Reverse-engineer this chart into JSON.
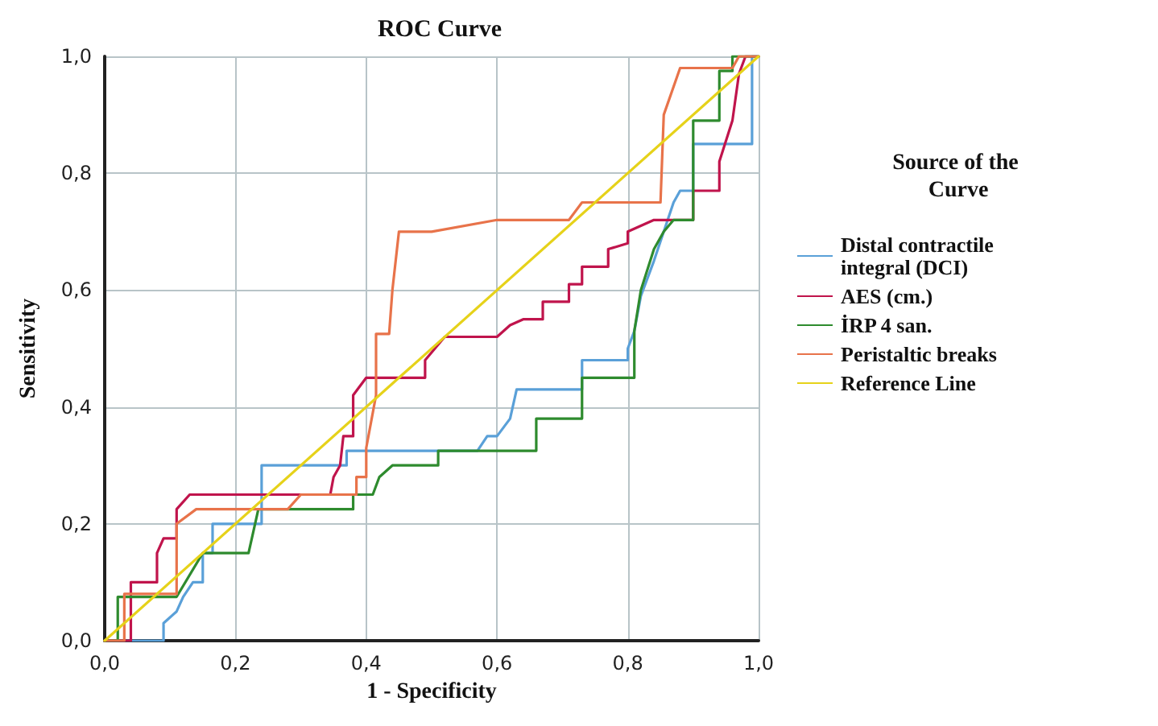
{
  "chart_data": {
    "type": "line",
    "title": "ROC Curve",
    "xlabel": "1 - Specificity",
    "ylabel": "Sensitivity",
    "legend_title": "Source of the Curve",
    "xlim": [
      0,
      1
    ],
    "ylim": [
      0,
      1
    ],
    "xticks": [
      {
        "value": 0,
        "label": "0,0"
      },
      {
        "value": 0.2,
        "label": "0,2"
      },
      {
        "value": 0.4,
        "label": "0,4"
      },
      {
        "value": 0.6,
        "label": "0,6"
      },
      {
        "value": 0.8,
        "label": "0,8"
      },
      {
        "value": 1,
        "label": "1,0"
      }
    ],
    "yticks": [
      {
        "value": 0,
        "label": "0,0"
      },
      {
        "value": 0.2,
        "label": "0,2"
      },
      {
        "value": 0.4,
        "label": "0,4"
      },
      {
        "value": 0.6,
        "label": "0,6"
      },
      {
        "value": 0.8,
        "label": "0,8"
      },
      {
        "value": 1,
        "label": "1,0"
      }
    ],
    "grid": true,
    "legend": "right",
    "marker": "none",
    "line_style": "solid",
    "series": [
      {
        "name": "Distal contractile integral (DCI)",
        "color": "#5aa0d8",
        "x": [
          0,
          0.09,
          0.09,
          0.11,
          0.12,
          0.135,
          0.15,
          0.15,
          0.165,
          0.165,
          0.24,
          0.24,
          0.37,
          0.37,
          0.57,
          0.585,
          0.6,
          0.62,
          0.63,
          0.73,
          0.73,
          0.8,
          0.8,
          0.81,
          0.82,
          0.84,
          0.855,
          0.87,
          0.88,
          0.9,
          0.9,
          0.99,
          0.99,
          1
        ],
        "values": [
          0,
          0,
          0.03,
          0.05,
          0.075,
          0.1,
          0.1,
          0.15,
          0.15,
          0.2,
          0.2,
          0.3,
          0.3,
          0.325,
          0.325,
          0.35,
          0.35,
          0.38,
          0.43,
          0.43,
          0.48,
          0.48,
          0.5,
          0.53,
          0.59,
          0.65,
          0.7,
          0.75,
          0.77,
          0.77,
          0.85,
          0.85,
          1,
          1
        ]
      },
      {
        "name": "AES (cm.)",
        "color": "#c0144c",
        "x": [
          0,
          0.04,
          0.04,
          0.08,
          0.08,
          0.09,
          0.11,
          0.11,
          0.13,
          0.345,
          0.35,
          0.36,
          0.365,
          0.38,
          0.38,
          0.4,
          0.49,
          0.49,
          0.52,
          0.6,
          0.62,
          0.64,
          0.67,
          0.67,
          0.71,
          0.71,
          0.73,
          0.73,
          0.77,
          0.77,
          0.8,
          0.8,
          0.84,
          0.9,
          0.9,
          0.94,
          0.94,
          0.96,
          0.97,
          0.98,
          1
        ],
        "values": [
          0,
          0,
          0.1,
          0.1,
          0.15,
          0.175,
          0.175,
          0.225,
          0.25,
          0.25,
          0.28,
          0.3,
          0.35,
          0.35,
          0.42,
          0.45,
          0.45,
          0.48,
          0.52,
          0.52,
          0.54,
          0.55,
          0.55,
          0.58,
          0.58,
          0.61,
          0.61,
          0.64,
          0.64,
          0.67,
          0.68,
          0.7,
          0.72,
          0.72,
          0.77,
          0.77,
          0.82,
          0.89,
          0.97,
          1,
          1
        ]
      },
      {
        "name": "İRP 4 san.",
        "color": "#2e8b2e",
        "x": [
          0,
          0.02,
          0.02,
          0.11,
          0.15,
          0.22,
          0.23,
          0.235,
          0.38,
          0.38,
          0.41,
          0.42,
          0.44,
          0.51,
          0.51,
          0.66,
          0.66,
          0.73,
          0.73,
          0.81,
          0.81,
          0.82,
          0.84,
          0.855,
          0.87,
          0.9,
          0.9,
          0.94,
          0.94,
          0.96,
          0.96,
          1
        ],
        "values": [
          0,
          0,
          0.075,
          0.075,
          0.15,
          0.15,
          0.2,
          0.225,
          0.225,
          0.25,
          0.25,
          0.28,
          0.3,
          0.3,
          0.325,
          0.325,
          0.38,
          0.38,
          0.45,
          0.45,
          0.53,
          0.6,
          0.67,
          0.7,
          0.72,
          0.72,
          0.89,
          0.89,
          0.975,
          0.975,
          1,
          1
        ]
      },
      {
        "name": "Peristaltic breaks",
        "color": "#e8734a",
        "x": [
          0,
          0.03,
          0.03,
          0.11,
          0.11,
          0.14,
          0.28,
          0.3,
          0.385,
          0.385,
          0.4,
          0.4,
          0.415,
          0.415,
          0.435,
          0.44,
          0.45,
          0.5,
          0.6,
          0.71,
          0.73,
          0.85,
          0.855,
          0.88,
          0.96,
          0.97,
          1
        ],
        "values": [
          0,
          0,
          0.08,
          0.08,
          0.2,
          0.225,
          0.225,
          0.25,
          0.25,
          0.28,
          0.28,
          0.33,
          0.42,
          0.525,
          0.525,
          0.6,
          0.7,
          0.7,
          0.72,
          0.72,
          0.75,
          0.75,
          0.9,
          0.98,
          0.98,
          1,
          1
        ]
      },
      {
        "name": "Reference Line",
        "color": "#e6d21a",
        "x": [
          0,
          1
        ],
        "values": [
          0,
          1
        ]
      }
    ]
  }
}
